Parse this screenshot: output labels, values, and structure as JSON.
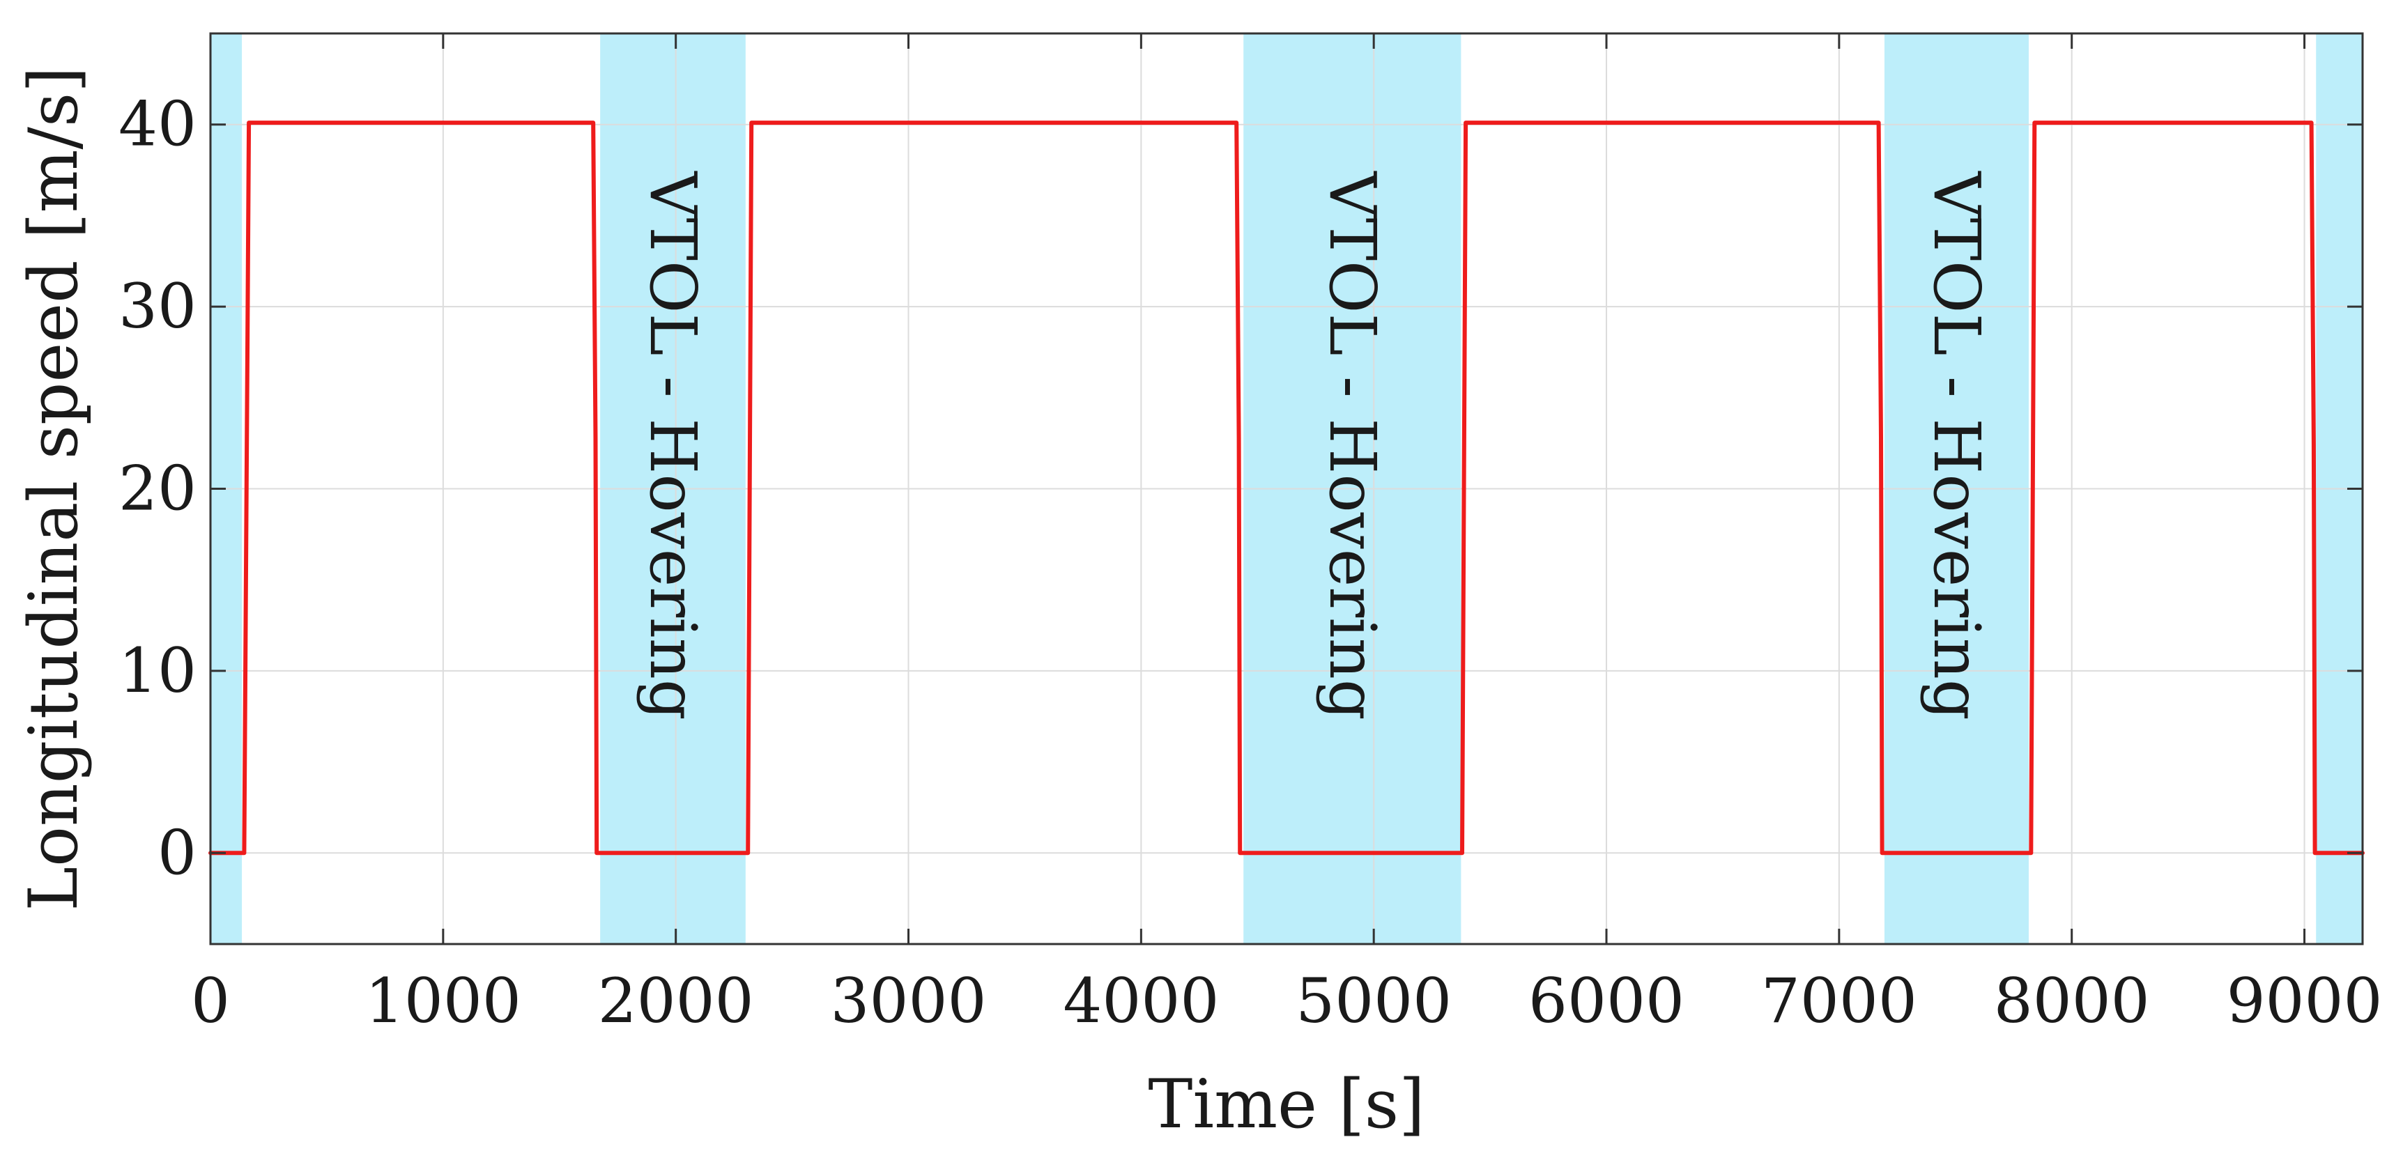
{
  "chart_data": {
    "type": "line",
    "xlabel": "Time [s]",
    "ylabel": "Longitudinal speed [m/s]",
    "xlim": [
      0,
      9250
    ],
    "ylim": [
      -5,
      45
    ],
    "xticks": [
      0,
      1000,
      2000,
      3000,
      4000,
      5000,
      6000,
      7000,
      8000,
      9000
    ],
    "yticks": [
      0,
      10,
      20,
      30,
      40
    ],
    "grid": true,
    "line_color": "#ee1c1c",
    "band_color": "#bdeefa",
    "bands": [
      {
        "x0": 0,
        "x1": 135,
        "label": ""
      },
      {
        "x0": 1675,
        "x1": 2300,
        "label": "VTOL - Hovering"
      },
      {
        "x0": 4440,
        "x1": 5375,
        "label": "VTOL - Hovering"
      },
      {
        "x0": 7195,
        "x1": 7815,
        "label": "VTOL - Hovering"
      },
      {
        "x0": 9050,
        "x1": 9250,
        "label": ""
      }
    ],
    "series": [
      {
        "x": [
          0,
          145,
          165,
          1625,
          1645,
          1655,
          1660,
          1665,
          2310,
          2325,
          2340,
          4395,
          4410,
          4420,
          4425,
          4430,
          5380,
          5395,
          5410,
          7155,
          7170,
          7180,
          7185,
          7190,
          7825,
          7840,
          7855,
          9015,
          9030,
          9040,
          9045,
          9050,
          9250
        ],
        "y": [
          0,
          0,
          40.1,
          40.1,
          40.1,
          22.8,
          0,
          0,
          0,
          40.1,
          40.1,
          40.1,
          40.1,
          22.8,
          0,
          0,
          0,
          40.1,
          40.1,
          40.1,
          40.1,
          22.8,
          0,
          0,
          0,
          40.1,
          40.1,
          40.1,
          40.1,
          22.5,
          0,
          0,
          0
        ]
      }
    ]
  }
}
